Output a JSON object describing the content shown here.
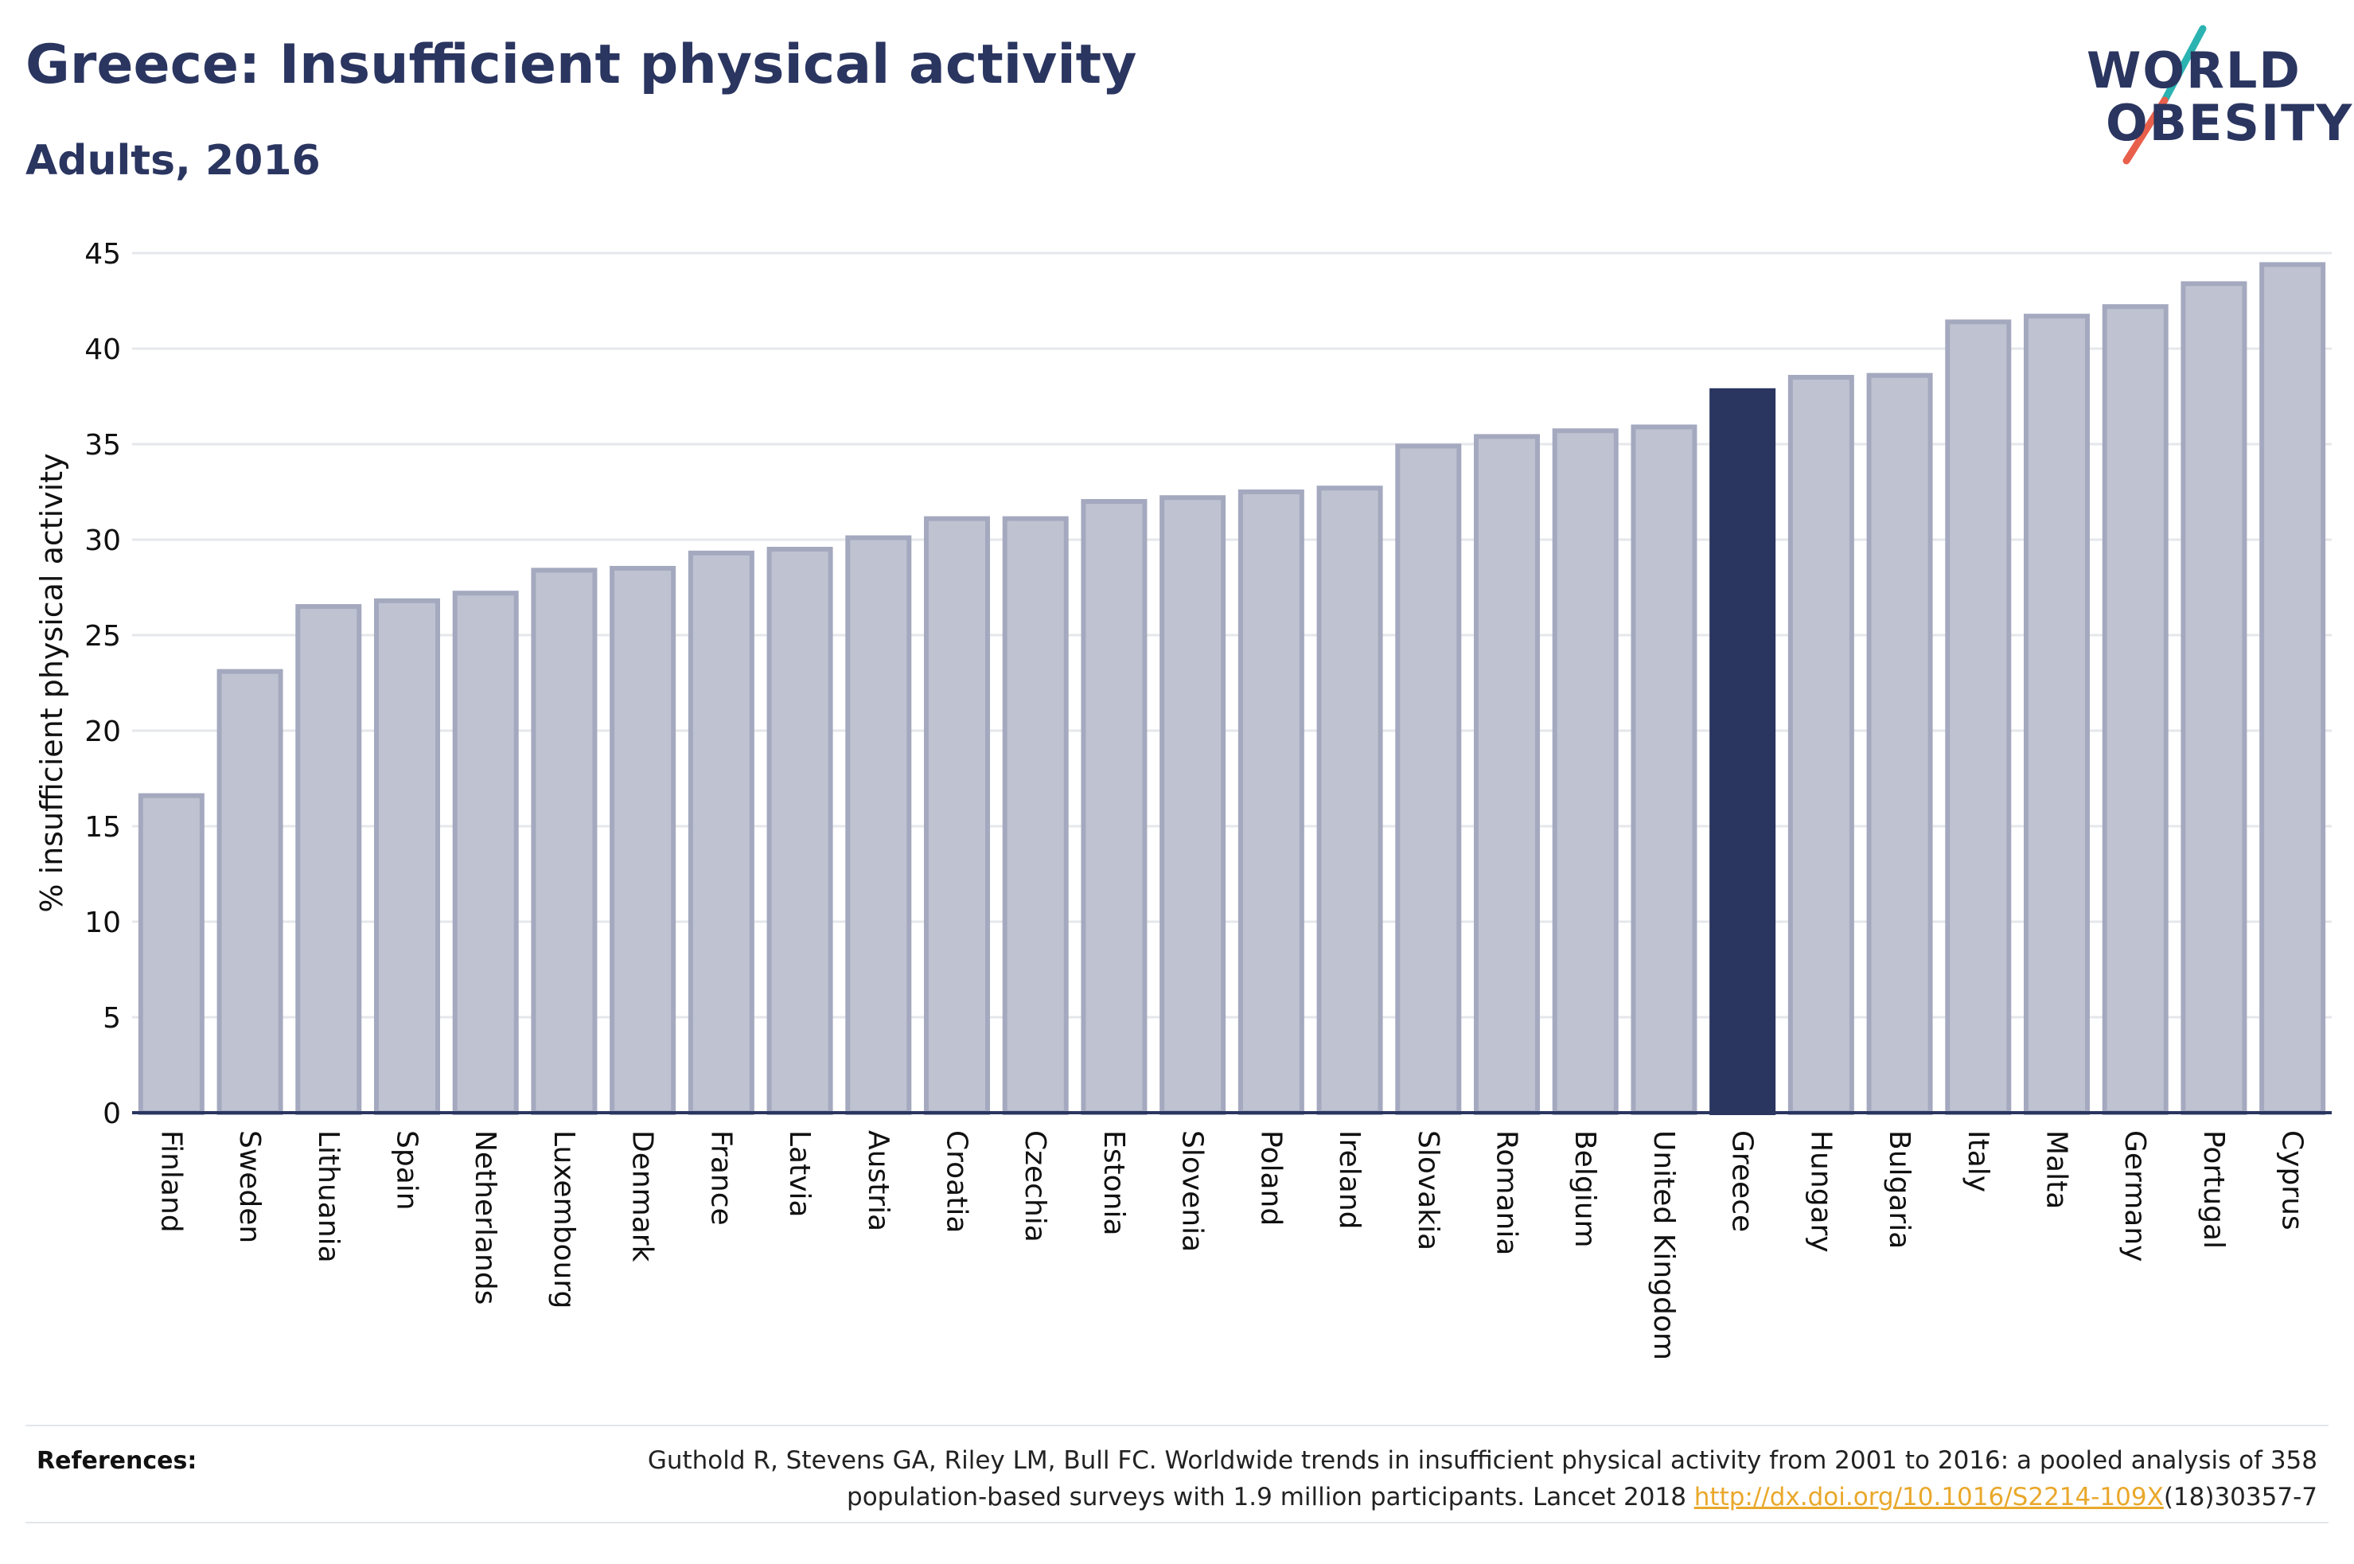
{
  "header": {
    "title": "Greece: Insufficient physical activity",
    "subtitle": "Adults, 2016"
  },
  "logo": {
    "line1": "WORLD",
    "line2": "OBESITY",
    "colors": {
      "text": "#2a3560",
      "slash_top": "#2bb3b1",
      "slash_bottom": "#e8604c"
    }
  },
  "chart_data": {
    "type": "bar",
    "ylabel": "% insufficient physical activity",
    "xlabel": "",
    "ylim": [
      0,
      45
    ],
    "yticks": [
      0,
      5,
      10,
      15,
      20,
      25,
      30,
      35,
      40,
      45
    ],
    "grid": true,
    "highlight": "Greece",
    "colors": {
      "bar": "#bfc3d1",
      "bar_stroke": "#a4a9bf",
      "highlight": "#2a3560",
      "grid": "#e6e7eb",
      "axis": "#2a3560"
    },
    "categories": [
      "Finland",
      "Sweden",
      "Lithuania",
      "Spain",
      "Netherlands",
      "Luxembourg",
      "Denmark",
      "France",
      "Latvia",
      "Austria",
      "Croatia",
      "Czechia",
      "Estonia",
      "Slovenia",
      "Poland",
      "Ireland",
      "Slovakia",
      "Romania",
      "Belgium",
      "United Kingdom",
      "Greece",
      "Hungary",
      "Bulgaria",
      "Italy",
      "Malta",
      "Germany",
      "Portugal",
      "Cyprus"
    ],
    "values": [
      16.6,
      23.1,
      26.5,
      26.8,
      27.2,
      28.4,
      28.5,
      29.3,
      29.5,
      30.1,
      31.1,
      31.1,
      32.0,
      32.2,
      32.5,
      32.7,
      34.9,
      35.4,
      35.7,
      35.9,
      37.8,
      38.5,
      38.6,
      41.4,
      41.7,
      42.2,
      43.4,
      44.4
    ]
  },
  "references": {
    "label": "References:",
    "text_line1": "Guthold R, Stevens GA, Riley LM, Bull FC. Worldwide trends in insufficient physical activity from 2001 to 2016: a pooled analysis of 358",
    "text_line2_before": "population-based surveys with 1.9 million participants. Lancet 2018 ",
    "link": "http://dx.doi.org/10.1016/S2214-109X",
    "text_line2_after": "(18)30357-7"
  }
}
